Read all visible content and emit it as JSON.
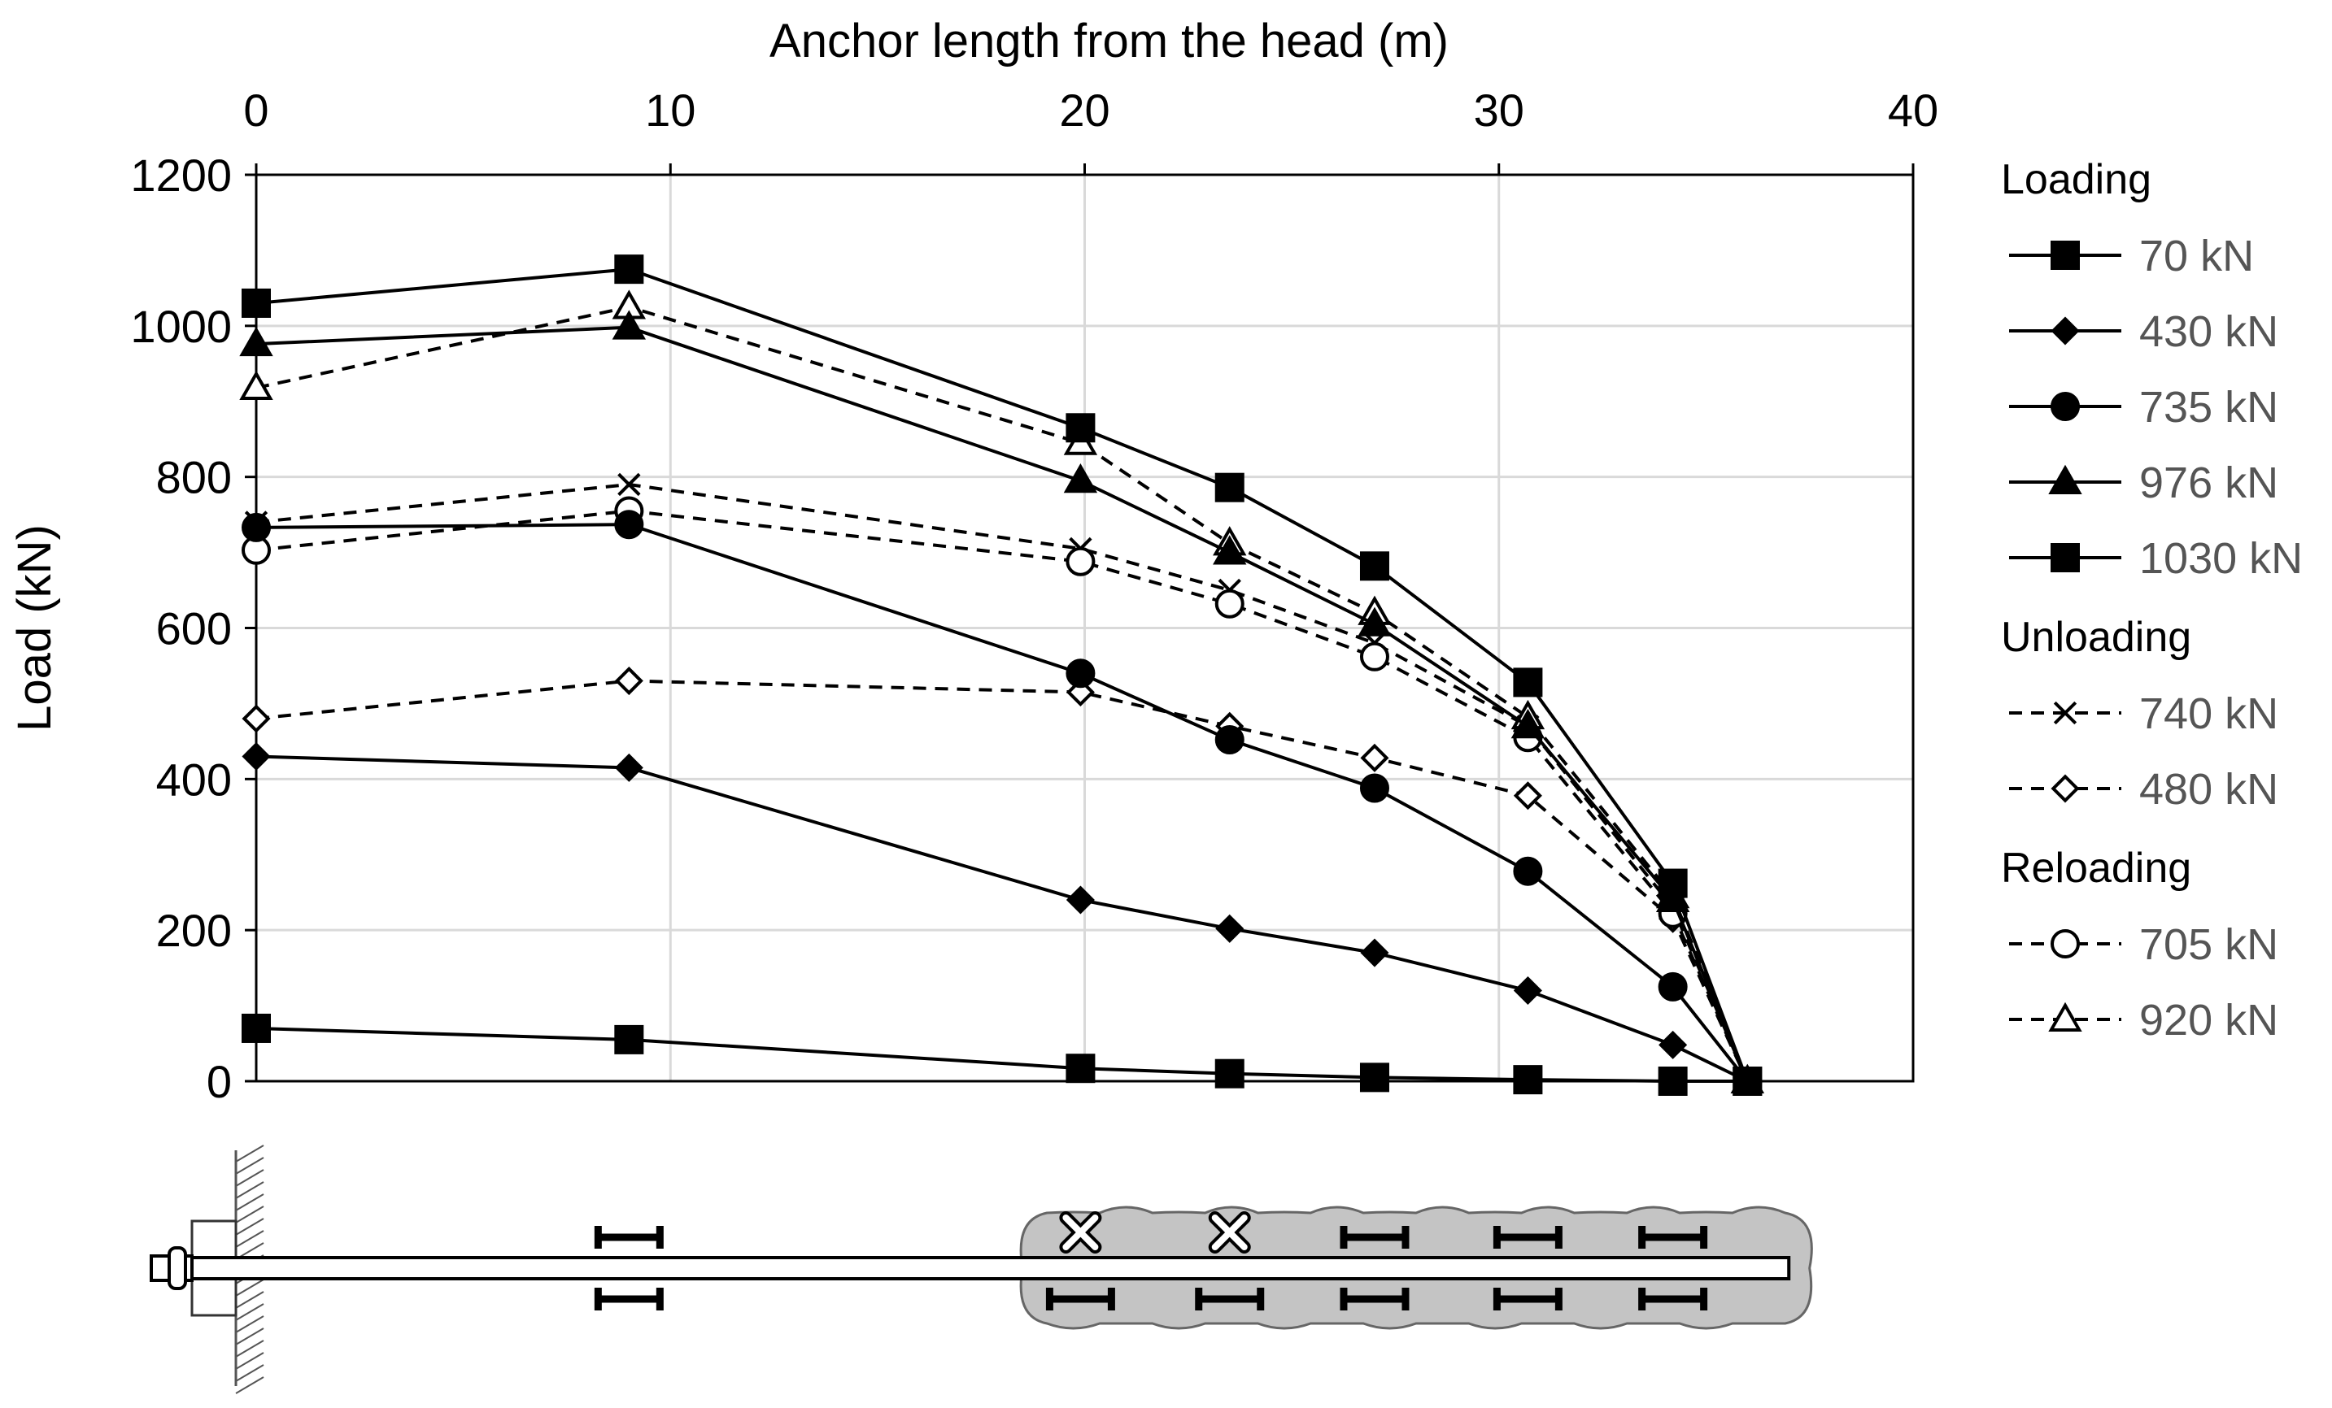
{
  "chart_data": {
    "type": "line",
    "title": "",
    "xlabel": "Anchor length from the head (m)",
    "ylabel": "Load (kN)",
    "xlim": [
      0,
      40
    ],
    "ylim": [
      0,
      1200
    ],
    "x_ticks": [
      "0",
      "10",
      "20",
      "30",
      "40"
    ],
    "y_ticks": [
      "0",
      "200",
      "400",
      "600",
      "800",
      "1000",
      "1200"
    ],
    "x_axis_position": "top",
    "grid": true,
    "legend_position": "right",
    "x": [
      0,
      9,
      19.9,
      23.5,
      27,
      30.7,
      34.2,
      36
    ],
    "legend_groups": [
      {
        "heading": "Loading",
        "series_indices": [
          0,
          1,
          2,
          3,
          4
        ]
      },
      {
        "heading": "Unloading",
        "series_indices": [
          5,
          6
        ]
      },
      {
        "heading": "Reloading",
        "series_indices": [
          7,
          8
        ]
      }
    ],
    "series": [
      {
        "name": "70 kN",
        "group": "Loading",
        "marker": "square",
        "filled": true,
        "dashed": false,
        "values": [
          70,
          55,
          17,
          10,
          5,
          2,
          0,
          0
        ]
      },
      {
        "name": "430 kN",
        "group": "Loading",
        "marker": "diamond",
        "filled": true,
        "dashed": false,
        "values": [
          430,
          415,
          240,
          202,
          170,
          120,
          48,
          0
        ]
      },
      {
        "name": "735 kN",
        "group": "Loading",
        "marker": "circle",
        "filled": true,
        "dashed": false,
        "values": [
          733,
          737,
          540,
          452,
          388,
          278,
          125,
          0
        ]
      },
      {
        "name": "976 kN",
        "group": "Loading",
        "marker": "triangle",
        "filled": true,
        "dashed": false,
        "values": [
          976,
          998,
          795,
          700,
          605,
          470,
          240,
          0
        ]
      },
      {
        "name": "1030 kN",
        "group": "Loading",
        "marker": "square",
        "filled": true,
        "dashed": false,
        "values": [
          1030,
          1075,
          865,
          786,
          682,
          528,
          262,
          0
        ]
      },
      {
        "name": "740 kN",
        "group": "Unloading",
        "marker": "cross",
        "filled": false,
        "dashed": true,
        "values": [
          740,
          790,
          705,
          650,
          580,
          470,
          230,
          0
        ]
      },
      {
        "name": "480 kN",
        "group": "Unloading",
        "marker": "diamond",
        "filled": false,
        "dashed": true,
        "values": [
          480,
          530,
          515,
          470,
          428,
          378,
          215,
          0
        ]
      },
      {
        "name": "705 kN",
        "group": "Reloading",
        "marker": "circle",
        "filled": false,
        "dashed": true,
        "values": [
          703,
          755,
          688,
          632,
          562,
          455,
          222,
          0
        ]
      },
      {
        "name": "920 kN",
        "group": "Reloading",
        "marker": "triangle",
        "filled": false,
        "dashed": true,
        "values": [
          918,
          1025,
          845,
          712,
          620,
          482,
          245,
          0
        ]
      }
    ],
    "diagram": {
      "description_free": true,
      "gauge_positions_m": [
        9,
        19.9,
        23.5,
        27,
        30.7,
        34.2
      ],
      "failed_gauge_positions_m": [
        19.9,
        23.5
      ],
      "grout_start_m": 18.5,
      "grout_end_m": 37.5,
      "bar_end_m": 37
    }
  }
}
